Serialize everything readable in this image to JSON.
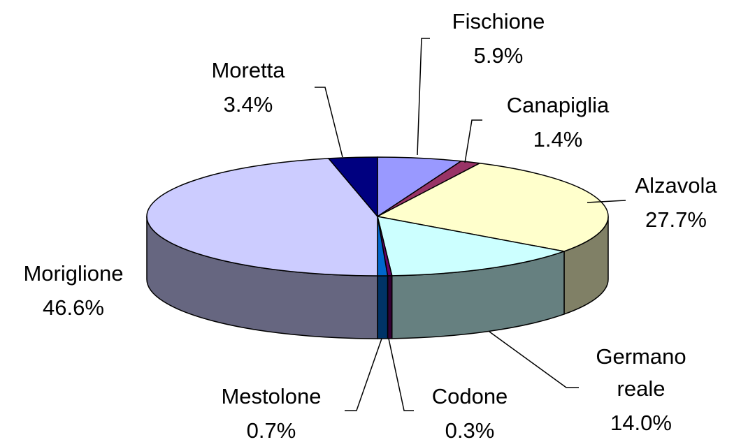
{
  "chart_data": {
    "type": "pie3d",
    "categories": [
      "Fischione",
      "Canapiglia",
      "Alzavola",
      "Germano reale",
      "Codone",
      "Mestolone",
      "Moriglione",
      "Moretta"
    ],
    "values": [
      5.9,
      1.4,
      27.7,
      14.0,
      0.3,
      0.7,
      46.6,
      3.4
    ],
    "value_labels": [
      "5.9%",
      "1.4%",
      "27.7%",
      "14.0%",
      "0.3%",
      "0.7%",
      "46.6%",
      "3.4%"
    ],
    "colors": [
      "#9999ff",
      "#993366",
      "#ffffcc",
      "#ccffff",
      "#660066",
      "#0066cc",
      "#ccccff",
      "#000080"
    ]
  }
}
